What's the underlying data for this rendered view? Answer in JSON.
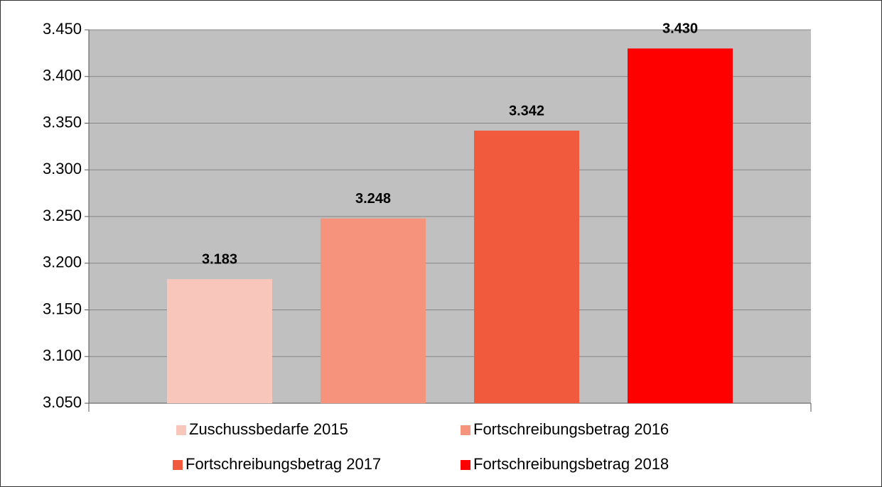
{
  "chart_data": {
    "type": "bar",
    "series": [
      {
        "name": "Zuschussbedarfe 2015",
        "color": "#f9c6bb",
        "values": [
          3183
        ],
        "value_labels": [
          "3.183"
        ]
      },
      {
        "name": "Fortschreibungsbetrag 2016",
        "color": "#f6937d",
        "values": [
          3248
        ],
        "value_labels": [
          "3.248"
        ]
      },
      {
        "name": "Fortschreibungsbetrag 2017",
        "color": "#f15a3c",
        "values": [
          3342
        ],
        "value_labels": [
          "3.342"
        ]
      },
      {
        "name": "Fortschreibungsbetrag 2018",
        "color": "#ff0000",
        "values": [
          3430
        ],
        "value_labels": [
          "3.430"
        ]
      }
    ],
    "ylim": [
      3050,
      3450
    ],
    "yticks": [
      {
        "value": 3050,
        "label": "3.050"
      },
      {
        "value": 3100,
        "label": "3.100"
      },
      {
        "value": 3150,
        "label": "3.150"
      },
      {
        "value": 3200,
        "label": "3.200"
      },
      {
        "value": 3250,
        "label": "3.250"
      },
      {
        "value": 3300,
        "label": "3.300"
      },
      {
        "value": 3350,
        "label": "3.350"
      },
      {
        "value": 3400,
        "label": "3.400"
      },
      {
        "value": 3450,
        "label": "3.450"
      }
    ],
    "grid": true,
    "legend": "bottom",
    "plot_background": "#c0c0c0"
  }
}
